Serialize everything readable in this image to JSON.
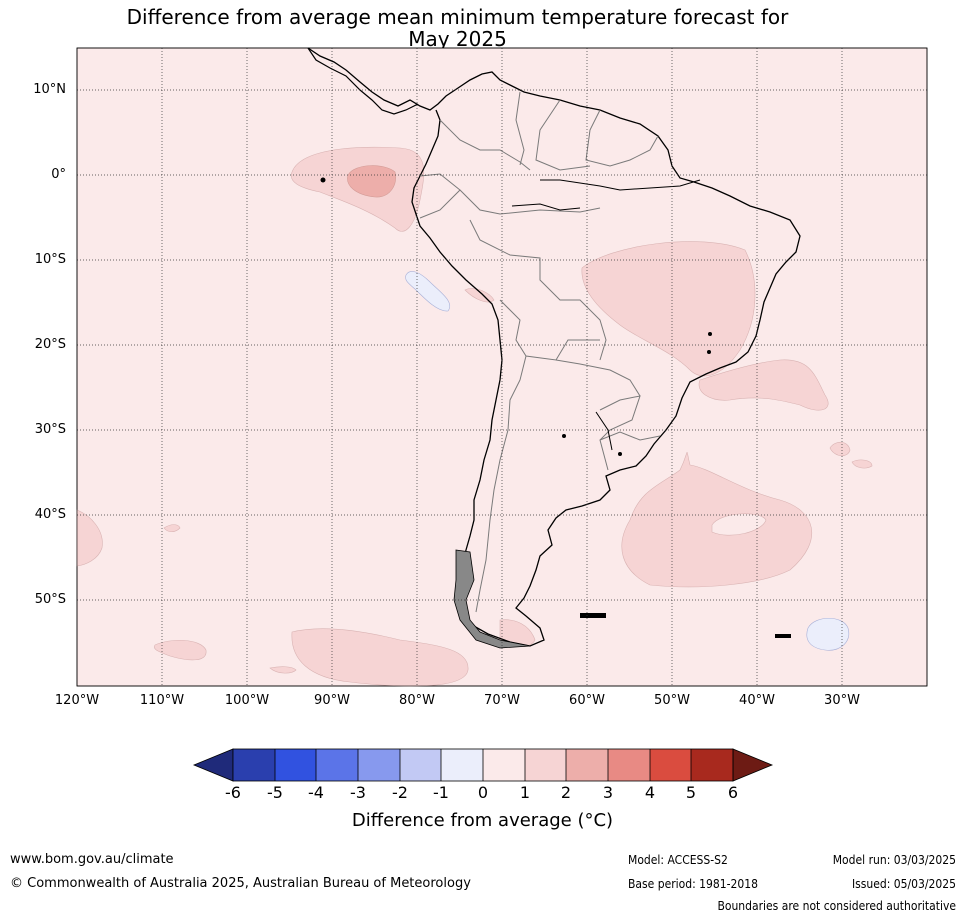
{
  "title": {
    "line1": "Difference from average mean minimum temperature forecast for",
    "line2": "May 2025"
  },
  "axes": {
    "lat_labels": [
      "10°N",
      "0°",
      "10°S",
      "20°S",
      "30°S",
      "40°S",
      "50°S"
    ],
    "lon_labels": [
      "120°W",
      "110°W",
      "100°W",
      "90°W",
      "80°W",
      "70°W",
      "60°W",
      "50°W",
      "40°W",
      "30°W"
    ]
  },
  "colorbar": {
    "ticks": [
      "-6",
      "-5",
      "-4",
      "-3",
      "-2",
      "-1",
      "0",
      "1",
      "2",
      "3",
      "4",
      "5",
      "6"
    ],
    "title": "Difference from average (°C)",
    "colors": [
      "#1f2a7a",
      "#2a3fae",
      "#3152e0",
      "#5b74e8",
      "#8799ee",
      "#c2c9f4",
      "#ebeefb",
      "#fbeaea",
      "#f6d4d4",
      "#edaeaa",
      "#e88a84",
      "#da4c3f",
      "#a8291e",
      "#6d1b14"
    ]
  },
  "map_colors": {
    "background": "#fbeaea",
    "plus_one_to_two": "#f6d4d4",
    "plus_two_to_three": "#edaeaa",
    "minus_zero_to_one": "#ebeefb"
  },
  "footer": {
    "website": "www.bom.gov.au/climate",
    "copyright": "© Commonwealth of Australia 2025, Australian Bureau of Meteorology",
    "model": "Model: ACCESS-S2",
    "base_period": "Base period: 1981-2018",
    "model_run": "Model run: 03/03/2025",
    "issued": "Issued: 05/03/2025",
    "disclaimer": "Boundaries are not considered authoritative"
  }
}
